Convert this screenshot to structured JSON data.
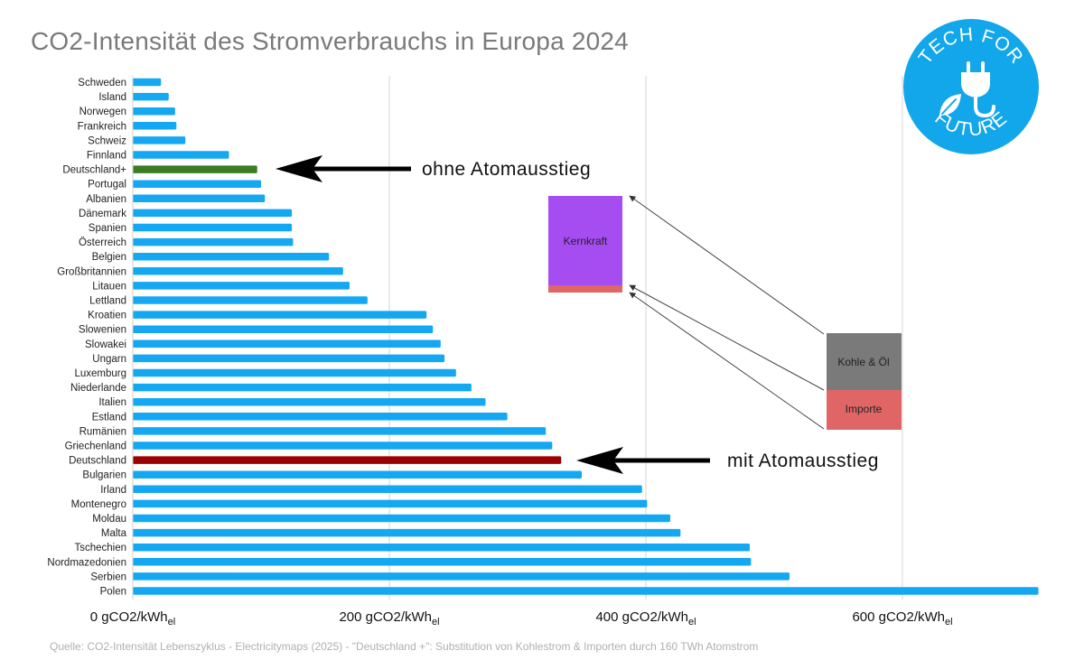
{
  "title": "CO2-Intensität des Stromverbrauchs in Europa 2024",
  "source_note": "Quelle: CO2-Intensität Lebenszyklus - Electricitymaps (2025) - \"Deutschland +\": Substitution von Kohlestrom & Importen durch 160 TWh Atomstrom",
  "logo": {
    "top_text": "TECH FOR",
    "bottom_text": "FUTURE",
    "color": "#12a6ea",
    "icon": "plug-leaf-icon"
  },
  "colors": {
    "bar": "#15a8f2",
    "highlight_plus": "#3c7d22",
    "highlight_de": "#9c0000",
    "nuclear": "#a64df2",
    "coal_oil": "#7a7a7a",
    "imports": "#e06666",
    "grid": "#d6d6d6"
  },
  "chart_data": {
    "type": "bar",
    "orientation": "horizontal",
    "title": "CO2-Intensität des Stromverbrauchs in Europa 2024",
    "unit": "gCO2/kWhel",
    "xlim": [
      0,
      700
    ],
    "ticks": [
      {
        "value": 0,
        "main": "0 gCO2/kWh",
        "sub": "el"
      },
      {
        "value": 200,
        "main": "200 gCO2/kWh",
        "sub": "el"
      },
      {
        "value": 400,
        "main": "400 gCO2/kWh",
        "sub": "el"
      },
      {
        "value": 600,
        "main": "600 gCO2/kWh",
        "sub": "el"
      }
    ],
    "grid": true,
    "categories": [
      "Schweden",
      "Island",
      "Norwegen",
      "Frankreich",
      "Schweiz",
      "Finnland",
      "Deutschland+",
      "Portugal",
      "Albanien",
      "Dänemark",
      "Spanien",
      "Österreich",
      "Belgien",
      "Großbritannien",
      "Litauen",
      "Lettland",
      "Kroatien",
      "Slowenien",
      "Slowakei",
      "Ungarn",
      "Luxemburg",
      "Niederlande",
      "Italien",
      "Estland",
      "Rumänien",
      "Griechenland",
      "Deutschland",
      "Bulgarien",
      "Irland",
      "Montenegro",
      "Moldau",
      "Malta",
      "Tschechien",
      "Nordmazedonien",
      "Serbien",
      "Polen"
    ],
    "values": [
      22,
      28,
      33,
      34,
      41,
      75,
      97,
      100,
      103,
      124,
      124,
      125,
      153,
      164,
      169,
      183,
      229,
      234,
      240,
      243,
      252,
      264,
      275,
      292,
      322,
      327,
      334,
      350,
      397,
      401,
      419,
      427,
      481,
      482,
      512,
      706
    ],
    "highlight": {
      "Deutschland+": "highlight_plus",
      "Deutschland": "highlight_de"
    },
    "annotations": [
      {
        "text": "ohne Atomausstieg",
        "category": "Deutschland+"
      },
      {
        "text": "mit Atomausstieg",
        "category": "Deutschland"
      }
    ],
    "inset_boxes": {
      "left_stack": [
        {
          "label": "Kernkraft",
          "color_key": "nuclear"
        },
        {
          "label": "",
          "color_key": "imports"
        }
      ],
      "right_stack": [
        {
          "label": "Kohle & Öl",
          "color_key": "coal_oil"
        },
        {
          "label": "Importe",
          "color_key": "imports"
        }
      ]
    }
  }
}
